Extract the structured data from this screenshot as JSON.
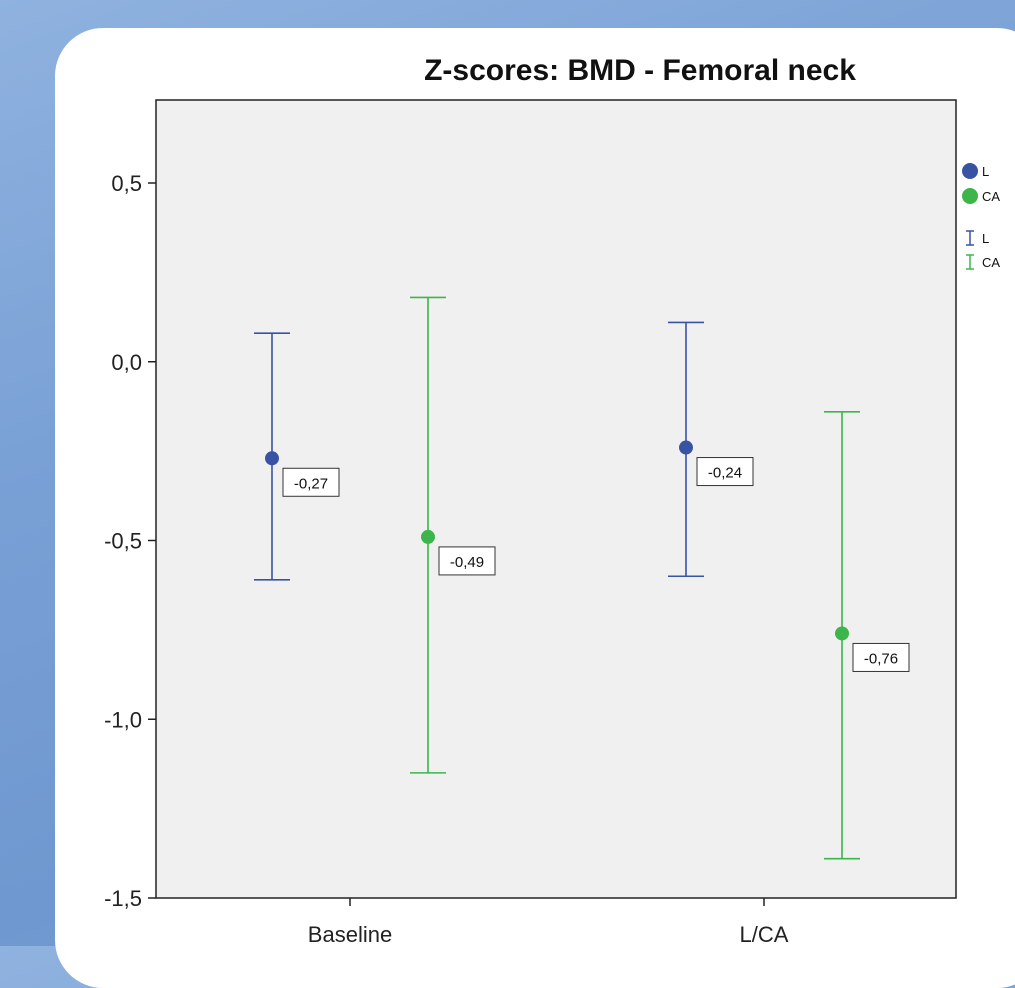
{
  "chart_data": {
    "type": "scatter",
    "title": "Z-scores: BMD - Femoral neck",
    "xlabel": "",
    "ylabel": "",
    "categories": [
      "Baseline",
      "L/CA"
    ],
    "ylim": [
      -1.5,
      0.75
    ],
    "yticks": [
      0.5,
      0.0,
      -0.5,
      -1.0,
      -1.5
    ],
    "ytick_labels": [
      "0,5",
      "0,0",
      "-0,5",
      "-1,0",
      "-1,5"
    ],
    "grid": false,
    "legend_position": "right",
    "series": [
      {
        "name": "L",
        "color": "#3953a4",
        "values": [
          -0.27,
          -0.24
        ],
        "value_labels": [
          "-0,27",
          "-0,24"
        ],
        "ci_lower": [
          -0.61,
          -0.6
        ],
        "ci_upper": [
          0.08,
          0.11
        ]
      },
      {
        "name": "CA",
        "color": "#3cb54a",
        "values": [
          -0.49,
          -0.76
        ],
        "value_labels": [
          "-0,49",
          "-0,76"
        ],
        "ci_lower": [
          -1.15,
          -1.39
        ],
        "ci_upper": [
          0.18,
          -0.14
        ]
      }
    ],
    "legend": {
      "marker_entries": [
        "L",
        "CA"
      ],
      "errorbar_entries": [
        "L",
        "CA"
      ]
    }
  }
}
